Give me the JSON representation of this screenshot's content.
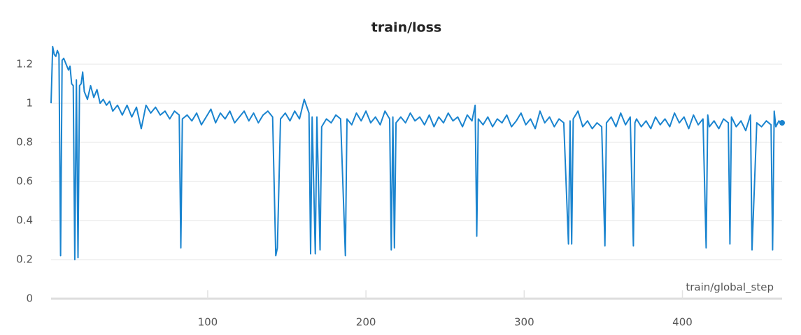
{
  "chart_data": {
    "type": "line",
    "title": "train/loss",
    "xlabel": "train/global_step",
    "x": [
      1,
      2,
      3,
      4,
      5,
      6,
      7,
      8,
      9,
      10,
      11,
      12,
      13,
      14,
      15,
      16,
      17,
      18,
      19,
      20,
      21,
      22,
      24,
      26,
      28,
      30,
      32,
      34,
      36,
      38,
      40,
      43,
      46,
      49,
      52,
      55,
      58,
      61,
      64,
      67,
      70,
      73,
      76,
      79,
      82,
      83,
      84,
      87,
      90,
      93,
      96,
      99,
      102,
      105,
      108,
      111,
      114,
      117,
      120,
      123,
      126,
      129,
      132,
      135,
      138,
      141,
      143,
      144,
      146,
      149,
      152,
      155,
      158,
      161,
      164,
      165,
      166,
      168,
      169,
      171,
      172,
      175,
      178,
      181,
      184,
      187,
      188,
      191,
      194,
      197,
      200,
      203,
      206,
      209,
      212,
      215,
      216,
      217,
      218,
      219,
      222,
      225,
      228,
      231,
      234,
      237,
      240,
      243,
      246,
      249,
      252,
      255,
      258,
      261,
      264,
      267,
      269,
      270,
      271,
      274,
      277,
      280,
      283,
      286,
      289,
      292,
      295,
      298,
      301,
      304,
      307,
      310,
      313,
      316,
      319,
      322,
      325,
      328,
      329,
      330,
      331,
      334,
      337,
      340,
      343,
      346,
      349,
      351,
      352,
      355,
      358,
      361,
      364,
      367,
      369,
      370,
      371,
      374,
      377,
      380,
      383,
      386,
      389,
      392,
      395,
      398,
      401,
      404,
      407,
      410,
      413,
      415,
      416,
      417,
      420,
      423,
      426,
      429,
      430,
      431,
      434,
      437,
      440,
      443,
      444,
      447,
      450,
      453,
      456,
      457,
      458,
      459,
      461,
      462,
      463
    ],
    "values": [
      1.0,
      1.29,
      1.25,
      1.24,
      1.27,
      1.25,
      0.22,
      1.22,
      1.23,
      1.21,
      1.19,
      1.17,
      1.19,
      1.1,
      1.09,
      0.2,
      1.12,
      0.21,
      1.09,
      1.1,
      1.16,
      1.06,
      1.02,
      1.09,
      1.03,
      1.07,
      1.0,
      1.02,
      0.99,
      1.01,
      0.96,
      0.99,
      0.94,
      0.99,
      0.93,
      0.98,
      0.87,
      0.99,
      0.95,
      0.98,
      0.94,
      0.96,
      0.92,
      0.96,
      0.94,
      0.26,
      0.92,
      0.94,
      0.91,
      0.95,
      0.89,
      0.93,
      0.97,
      0.9,
      0.95,
      0.92,
      0.96,
      0.9,
      0.93,
      0.96,
      0.91,
      0.95,
      0.9,
      0.94,
      0.96,
      0.93,
      0.22,
      0.26,
      0.92,
      0.95,
      0.91,
      0.96,
      0.92,
      1.02,
      0.95,
      0.23,
      0.93,
      0.23,
      0.93,
      0.25,
      0.88,
      0.92,
      0.9,
      0.94,
      0.92,
      0.22,
      0.92,
      0.89,
      0.95,
      0.91,
      0.96,
      0.9,
      0.93,
      0.89,
      0.96,
      0.92,
      0.25,
      0.93,
      0.26,
      0.9,
      0.93,
      0.9,
      0.95,
      0.91,
      0.93,
      0.89,
      0.94,
      0.88,
      0.93,
      0.9,
      0.95,
      0.91,
      0.93,
      0.88,
      0.94,
      0.91,
      0.99,
      0.32,
      0.92,
      0.89,
      0.93,
      0.88,
      0.92,
      0.9,
      0.94,
      0.88,
      0.91,
      0.95,
      0.89,
      0.92,
      0.87,
      0.96,
      0.9,
      0.93,
      0.88,
      0.92,
      0.9,
      0.28,
      0.91,
      0.28,
      0.92,
      0.96,
      0.88,
      0.91,
      0.87,
      0.9,
      0.88,
      0.27,
      0.9,
      0.93,
      0.88,
      0.95,
      0.89,
      0.93,
      0.27,
      0.9,
      0.92,
      0.88,
      0.91,
      0.87,
      0.93,
      0.89,
      0.92,
      0.88,
      0.95,
      0.9,
      0.93,
      0.87,
      0.94,
      0.89,
      0.92,
      0.26,
      0.94,
      0.88,
      0.91,
      0.87,
      0.92,
      0.9,
      0.28,
      0.93,
      0.88,
      0.91,
      0.86,
      0.94,
      0.25,
      0.9,
      0.88,
      0.91,
      0.89,
      0.25,
      0.96,
      0.88,
      0.91,
      0.9,
      0.9
    ],
    "color": "#1a84cf",
    "xlim": [
      1,
      463
    ],
    "ylim": [
      0,
      1.3
    ],
    "xticks": [
      100,
      200,
      300,
      400
    ],
    "yticks": [
      0,
      0.2,
      0.4,
      0.6,
      0.8,
      1,
      1.2
    ],
    "grid": true
  }
}
